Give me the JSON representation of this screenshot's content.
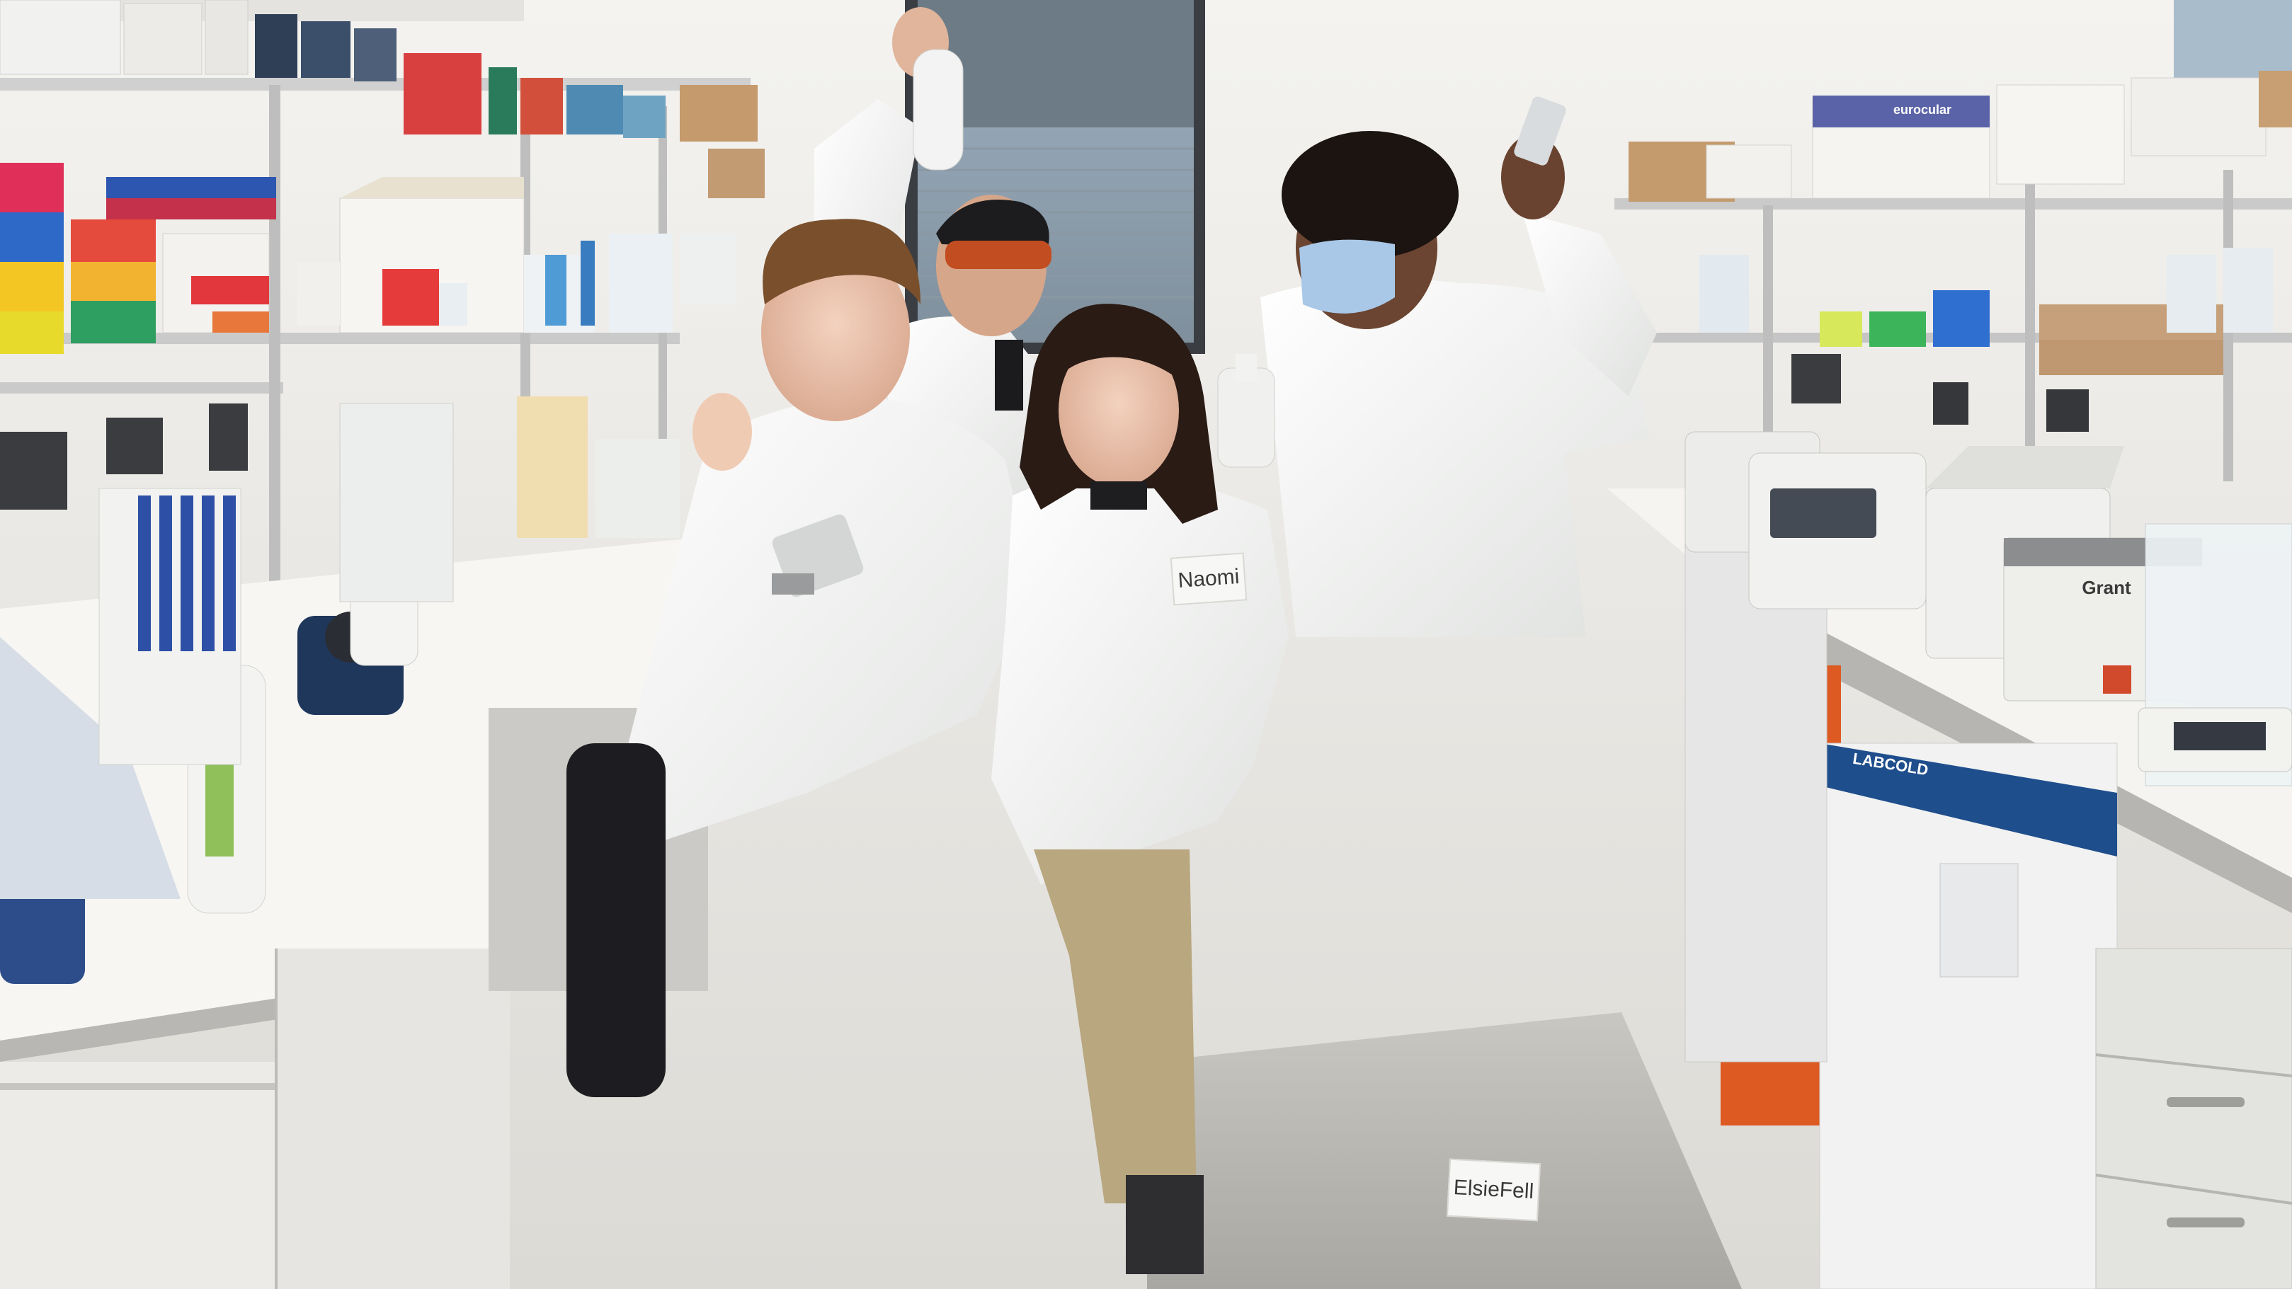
{
  "scene": {
    "name_tags": [
      {
        "text": "Naomi"
      },
      {
        "text": "ElsieFell"
      }
    ],
    "equipment_labels": {
      "incubator_brand": "Grant",
      "fridge_brand": "LABCOLD",
      "box_brand": "eurocular"
    }
  },
  "colors": {
    "wall": "#f2f1ee",
    "bench_top": "#f4f3f0",
    "lab_coat": "#f5f6f4",
    "orange_panel": "#dd5a22",
    "fridge_blue": "#1f4e8c",
    "vortex_blue": "#1f3456"
  }
}
